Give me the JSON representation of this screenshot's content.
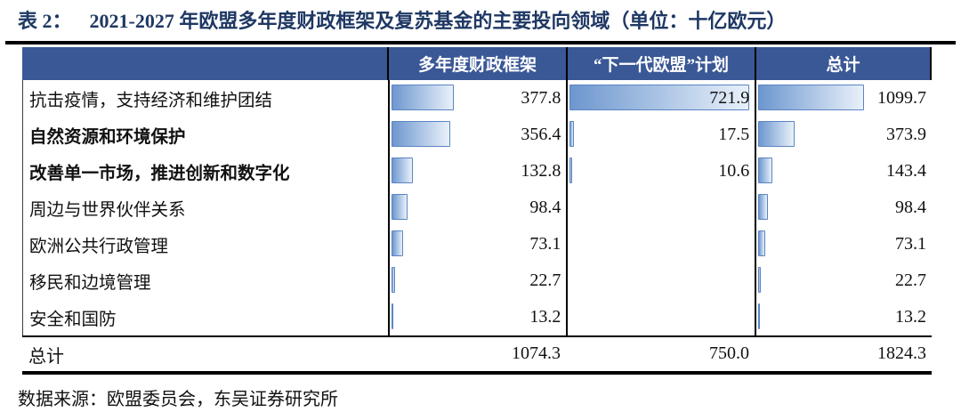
{
  "title": {
    "prefix": "表 2：",
    "text": "2021-2027 年欧盟多年度财政框架及复苏基金的主要投向领域（单位：十亿欧元）"
  },
  "source": "数据来源：欧盟委员会，东吴证券研究所",
  "chart_data": {
    "type": "table",
    "title": "2021-2027 年欧盟多年度财政框架及复苏基金的主要投向领域",
    "unit": "十亿欧元",
    "columns": [
      "多年度财政框架",
      "“下一代欧盟”计划",
      "总计"
    ],
    "rows": [
      {
        "label": "抗击疫情，支持经济和维护团结",
        "bold": false,
        "values": [
          377.8,
          721.9,
          1099.7
        ]
      },
      {
        "label": "自然资源和环境保护",
        "bold": true,
        "values": [
          356.4,
          17.5,
          373.9
        ]
      },
      {
        "label": "改善单一市场，推进创新和数字化",
        "bold": true,
        "values": [
          132.8,
          10.6,
          143.4
        ]
      },
      {
        "label": "周边与世界伙伴关系",
        "bold": false,
        "values": [
          98.4,
          null,
          98.4
        ]
      },
      {
        "label": "欧洲公共行政管理",
        "bold": false,
        "values": [
          73.1,
          null,
          73.1
        ]
      },
      {
        "label": "移民和边境管理",
        "bold": false,
        "values": [
          22.7,
          null,
          22.7
        ]
      },
      {
        "label": "安全和国防",
        "bold": false,
        "values": [
          13.2,
          null,
          13.2
        ]
      }
    ],
    "total_row": {
      "label": "总计",
      "values": [
        1074.3,
        750.0,
        1824.3
      ]
    },
    "bar_axis_max": [
      1074.3,
      750.0,
      1824.3
    ],
    "layout": {
      "bars": "gradient-databar-per-column",
      "grid": "column-separators-only",
      "legend": "none"
    },
    "colors": {
      "title_text": "#1f3864",
      "header_bg": "#3a5896",
      "header_text": "#ffffff",
      "bar_fill_start": "#6d97cf",
      "bar_fill_end": "#e9f1fa",
      "bar_border": "#5a85c2",
      "rule": "#000000"
    }
  }
}
